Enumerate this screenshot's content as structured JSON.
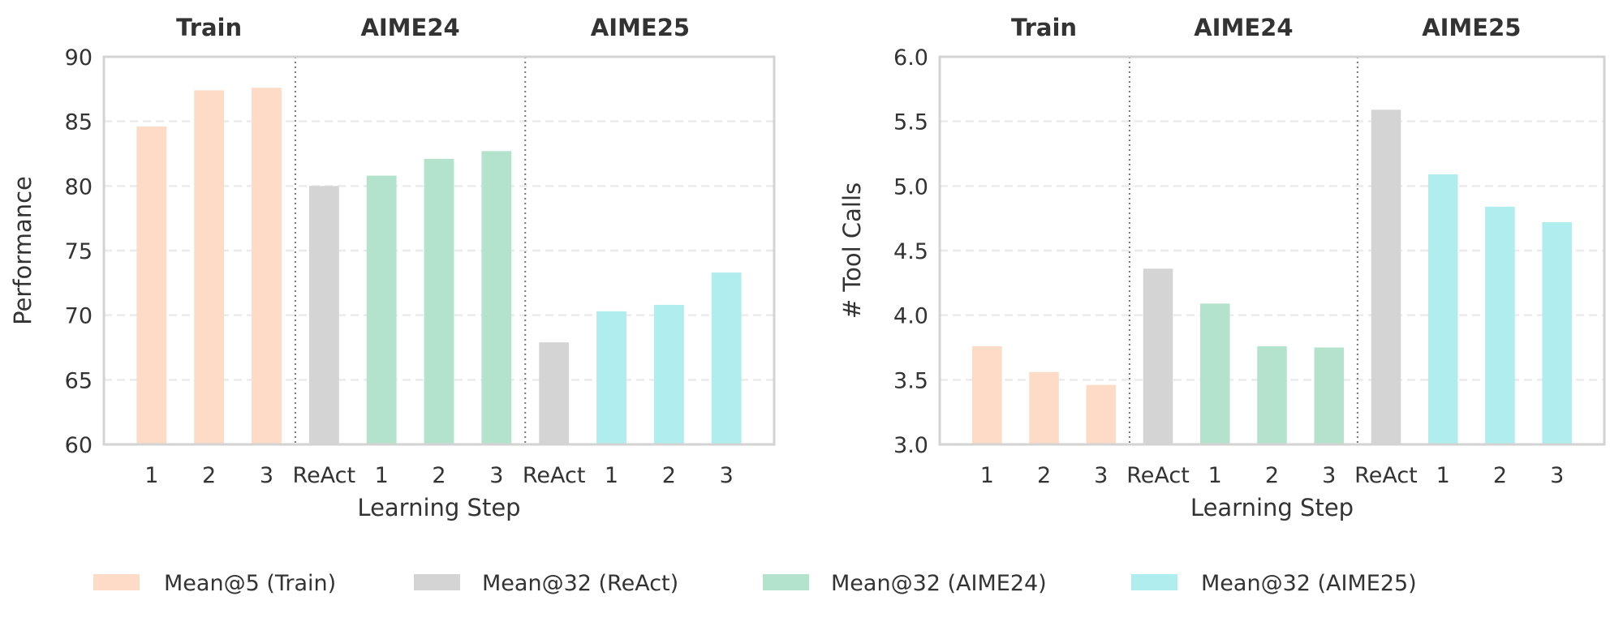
{
  "chart_data": [
    {
      "type": "bar",
      "categories": [
        "1",
        "2",
        "3",
        "ReAct",
        "1",
        "2",
        "3",
        "ReAct",
        "1",
        "2",
        "3"
      ],
      "groups": [
        {
          "title": "Train",
          "start": 0,
          "end": 2
        },
        {
          "title": "AIME24",
          "start": 3,
          "end": 6
        },
        {
          "title": "AIME25",
          "start": 7,
          "end": 10
        }
      ],
      "values": [
        84.6,
        87.4,
        87.6,
        80.0,
        80.8,
        82.1,
        82.7,
        67.9,
        70.3,
        70.8,
        73.3
      ],
      "series_index": [
        0,
        0,
        0,
        1,
        2,
        2,
        2,
        1,
        3,
        3,
        3
      ],
      "xlabel": "Learning Step",
      "ylabel": "Performance",
      "ylim": [
        60,
        90
      ],
      "yticks": [
        "60",
        "65",
        "70",
        "75",
        "80",
        "85",
        "90"
      ],
      "grid": "horizontal dashed"
    },
    {
      "type": "bar",
      "categories": [
        "1",
        "2",
        "3",
        "ReAct",
        "1",
        "2",
        "3",
        "ReAct",
        "1",
        "2",
        "3"
      ],
      "groups": [
        {
          "title": "Train",
          "start": 0,
          "end": 2
        },
        {
          "title": "AIME24",
          "start": 3,
          "end": 6
        },
        {
          "title": "AIME25",
          "start": 7,
          "end": 10
        }
      ],
      "values": [
        3.76,
        3.56,
        3.46,
        4.36,
        4.09,
        3.76,
        3.75,
        5.59,
        5.09,
        4.84,
        4.72
      ],
      "series_index": [
        0,
        0,
        0,
        1,
        2,
        2,
        2,
        1,
        3,
        3,
        3
      ],
      "xlabel": "Learning Step",
      "ylabel": "# Tool Calls",
      "ylim": [
        3.0,
        6.0
      ],
      "yticks": [
        "3.0",
        "3.5",
        "4.0",
        "4.5",
        "5.0",
        "5.5",
        "6.0"
      ],
      "grid": "horizontal dashed"
    }
  ],
  "legend": {
    "placement": "bottom",
    "items": [
      {
        "label": "Mean@5 (Train)",
        "color": "#fddbc7"
      },
      {
        "label": "Mean@32 (ReAct)",
        "color": "#d4d4d4"
      },
      {
        "label": "Mean@32 (AIME24)",
        "color": "#b3e3cd"
      },
      {
        "label": "Mean@32 (AIME25)",
        "color": "#afedee"
      }
    ]
  }
}
